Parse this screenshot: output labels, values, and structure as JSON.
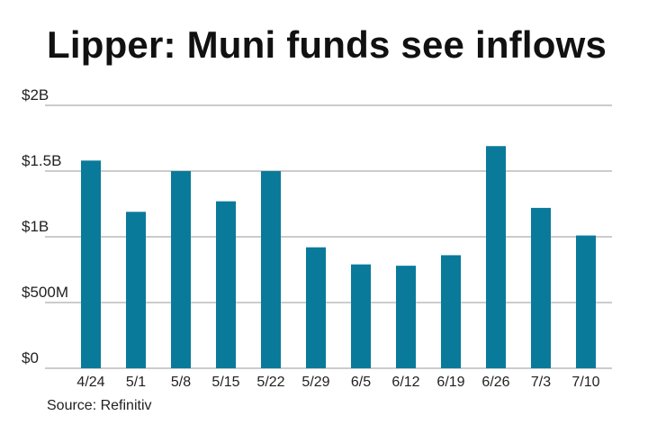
{
  "header": {
    "title": "Lipper: Muni funds see inflows"
  },
  "footer": {
    "source": "Source: Refinitiv"
  },
  "chart_data": {
    "type": "bar",
    "title": "Lipper: Muni funds see inflows",
    "xlabel": "",
    "ylabel": "",
    "categories": [
      "4/24",
      "5/1",
      "5/8",
      "5/15",
      "5/22",
      "5/29",
      "6/5",
      "6/12",
      "6/19",
      "6/26",
      "7/3",
      "7/10"
    ],
    "values": [
      1.58,
      1.19,
      1.5,
      1.27,
      1.5,
      0.92,
      0.79,
      0.78,
      0.86,
      1.69,
      1.22,
      1.01
    ],
    "unit": "billions of dollars",
    "ylim": [
      0,
      2
    ],
    "yticks": [
      0,
      0.5,
      1,
      1.5,
      2
    ],
    "ytick_labels": [
      "$0",
      "$500M",
      "$1B",
      "$1.5B",
      "$2B"
    ],
    "grid": true,
    "legend": "none",
    "colors": {
      "bar": "#0a7a9a",
      "grid": "#9a9a9a",
      "axis": "#9a9a9a"
    }
  }
}
